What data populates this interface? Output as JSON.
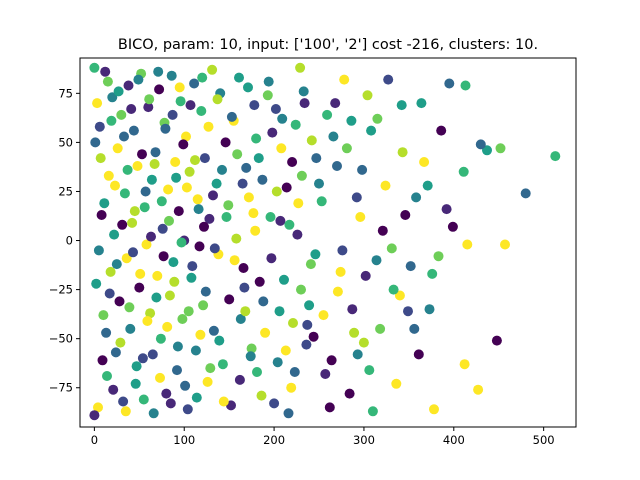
{
  "chart_data": {
    "type": "scatter",
    "title": "BICO, param: 10, input: ['100', '2'] cost -216, clusters: 10.",
    "xlabel": "",
    "ylabel": "",
    "xlim": [
      -16,
      536
    ],
    "ylim": [
      -95,
      93
    ],
    "xticks": [
      0,
      100,
      200,
      300,
      400,
      500
    ],
    "yticks": [
      -75,
      -50,
      -25,
      0,
      25,
      50,
      75
    ],
    "grid": false,
    "legend": "none",
    "cluster_colors": [
      "#440154",
      "#482878",
      "#3e4a89",
      "#31688e",
      "#26828e",
      "#1f9e89",
      "#35b779",
      "#6ece58",
      "#b5de2b",
      "#fde725"
    ],
    "points": [
      [
        480,
        24,
        3
      ],
      [
        513,
        43,
        6
      ],
      [
        457,
        -2,
        9
      ],
      [
        448,
        -51,
        0
      ],
      [
        427,
        -76,
        9
      ],
      [
        437,
        46,
        5
      ],
      [
        413,
        79,
        6
      ],
      [
        395,
        80,
        3
      ],
      [
        411,
        35,
        6
      ],
      [
        399,
        7,
        0
      ],
      [
        376,
        -17,
        6
      ],
      [
        378,
        -86,
        9
      ],
      [
        386,
        56,
        0
      ],
      [
        430,
        49,
        3
      ],
      [
        452,
        47,
        7
      ],
      [
        415,
        -2,
        9
      ],
      [
        412,
        -63,
        9
      ],
      [
        373,
        -35,
        4
      ],
      [
        364,
        70,
        5
      ],
      [
        352,
        -13,
        3
      ],
      [
        343,
        45,
        8
      ],
      [
        336,
        -73,
        9
      ],
      [
        315,
        62,
        7
      ],
      [
        306,
        -66,
        6
      ],
      [
        298,
        36,
        3
      ],
      [
        284,
        -78,
        0
      ],
      [
        296,
        12,
        9
      ],
      [
        327,
        82,
        2
      ],
      [
        342,
        69,
        5
      ],
      [
        358,
        22,
        4
      ],
      [
        371,
        28,
        5
      ],
      [
        340,
        -28,
        9
      ],
      [
        361,
        -58,
        0
      ],
      [
        318,
        -45,
        7
      ],
      [
        302,
        -18,
        1
      ],
      [
        289,
        -47,
        8
      ],
      [
        278,
        82,
        9
      ],
      [
        266,
        53,
        4
      ],
      [
        276,
        -5,
        2
      ],
      [
        257,
        -68,
        1
      ],
      [
        253,
        20,
        6
      ],
      [
        268,
        70,
        1
      ],
      [
        321,
        5,
        0
      ],
      [
        331,
        -4,
        7
      ],
      [
        310,
        -87,
        6
      ],
      [
        349,
        -36,
        2
      ],
      [
        286,
        61,
        5
      ],
      [
        271,
        -26,
        9
      ],
      [
        262,
        -85,
        0
      ],
      [
        247,
        42,
        3
      ],
      [
        293,
        -58,
        4
      ],
      [
        304,
        74,
        8
      ],
      [
        226,
        3,
        1
      ],
      [
        239,
        -33,
        5
      ],
      [
        233,
        76,
        4
      ],
      [
        219,
        -75,
        9
      ],
      [
        241,
        -12,
        7
      ],
      [
        224,
        59,
        6
      ],
      [
        236,
        -53,
        2
      ],
      [
        214,
        27,
        0
      ],
      [
        229,
        88,
        8
      ],
      [
        216,
        -88,
        3
      ],
      [
        208,
        47,
        9
      ],
      [
        211,
        -20,
        5
      ],
      [
        207,
        10,
        1
      ],
      [
        221,
        -42,
        8
      ],
      [
        202,
        67,
        2
      ],
      [
        204,
        -62,
        4
      ],
      [
        231,
        33,
        7
      ],
      [
        244,
        -49,
        0
      ],
      [
        196,
        12,
        6
      ],
      [
        188,
        -31,
        3
      ],
      [
        194,
        81,
        4
      ],
      [
        183,
        42,
        5
      ],
      [
        186,
        -79,
        8
      ],
      [
        179,
        5,
        9
      ],
      [
        198,
        55,
        1
      ],
      [
        175,
        -55,
        7
      ],
      [
        172,
        22,
        9
      ],
      [
        178,
        69,
        2
      ],
      [
        166,
        -14,
        0
      ],
      [
        181,
        -67,
        6
      ],
      [
        169,
        37,
        3
      ],
      [
        161,
        83,
        5
      ],
      [
        163,
        -40,
        4
      ],
      [
        158,
        1,
        8
      ],
      [
        155,
        61,
        9
      ],
      [
        152,
        -84,
        1
      ],
      [
        167,
        -24,
        2
      ],
      [
        149,
        18,
        7
      ],
      [
        146,
        50,
        0
      ],
      [
        143,
        -63,
        6
      ],
      [
        140,
        75,
        4
      ],
      [
        138,
        -7,
        9
      ],
      [
        136,
        29,
        5
      ],
      [
        133,
        -46,
        3
      ],
      [
        131,
        87,
        8
      ],
      [
        128,
        11,
        1
      ],
      [
        126,
        -72,
        9
      ],
      [
        123,
        42,
        2
      ],
      [
        121,
        -33,
        7
      ],
      [
        119,
        66,
        6
      ],
      [
        117,
        -3,
        0
      ],
      [
        115,
        21,
        9
      ],
      [
        113,
        -56,
        4
      ],
      [
        111,
        80,
        3
      ],
      [
        108,
        -19,
        5
      ],
      [
        106,
        35,
        8
      ],
      [
        104,
        -86,
        2
      ],
      [
        102,
        53,
        9
      ],
      [
        100,
        0,
        1
      ],
      [
        98,
        -40,
        7
      ],
      [
        96,
        71,
        6
      ],
      [
        94,
        15,
        0
      ],
      [
        92,
        -66,
        3
      ],
      [
        90,
        40,
        9
      ],
      [
        88,
        -11,
        5
      ],
      [
        86,
        84,
        4
      ],
      [
        84,
        -28,
        8
      ],
      [
        82,
        26,
        9
      ],
      [
        80,
        -78,
        1
      ],
      [
        78,
        60,
        7
      ],
      [
        76,
        6,
        2
      ],
      [
        74,
        -50,
        6
      ],
      [
        72,
        77,
        0
      ],
      [
        70,
        -18,
        9
      ],
      [
        68,
        45,
        3
      ],
      [
        66,
        -88,
        4
      ],
      [
        64,
        31,
        5
      ],
      [
        62,
        -37,
        8
      ],
      [
        60,
        68,
        1
      ],
      [
        58,
        -2,
        9
      ],
      [
        56,
        17,
        6
      ],
      [
        54,
        -60,
        2
      ],
      [
        52,
        85,
        7
      ],
      [
        50,
        -24,
        0
      ],
      [
        48,
        38,
        9
      ],
      [
        46,
        -73,
        5
      ],
      [
        44,
        56,
        3
      ],
      [
        42,
        9,
        8
      ],
      [
        40,
        -45,
        4
      ],
      [
        38,
        79,
        1
      ],
      [
        36,
        -9,
        9
      ],
      [
        34,
        24,
        6
      ],
      [
        32,
        -82,
        2
      ],
      [
        30,
        64,
        7
      ],
      [
        28,
        -31,
        0
      ],
      [
        26,
        47,
        9
      ],
      [
        24,
        -57,
        3
      ],
      [
        22,
        3,
        5
      ],
      [
        20,
        73,
        4
      ],
      [
        18,
        -16,
        8
      ],
      [
        16,
        33,
        9
      ],
      [
        14,
        -69,
        6
      ],
      [
        12,
        86,
        1
      ],
      [
        10,
        -38,
        7
      ],
      [
        8,
        13,
        0
      ],
      [
        6,
        58,
        2
      ],
      [
        4,
        -85,
        9
      ],
      [
        2,
        -22,
        5
      ],
      [
        1,
        50,
        3
      ],
      [
        0,
        88,
        6
      ],
      [
        0,
        -89,
        1
      ],
      [
        3,
        70,
        9
      ],
      [
        5,
        -5,
        4
      ],
      [
        7,
        42,
        8
      ],
      [
        9,
        -61,
        0
      ],
      [
        11,
        19,
        5
      ],
      [
        13,
        -47,
        3
      ],
      [
        15,
        81,
        7
      ],
      [
        17,
        -27,
        2
      ],
      [
        19,
        61,
        6
      ],
      [
        21,
        -76,
        1
      ],
      [
        23,
        28,
        9
      ],
      [
        25,
        -12,
        4
      ],
      [
        27,
        76,
        5
      ],
      [
        29,
        -52,
        8
      ],
      [
        31,
        8,
        0
      ],
      [
        33,
        53,
        3
      ],
      [
        35,
        -87,
        9
      ],
      [
        37,
        36,
        6
      ],
      [
        39,
        -34,
        7
      ],
      [
        41,
        67,
        1
      ],
      [
        43,
        -6,
        2
      ],
      [
        45,
        15,
        8
      ],
      [
        47,
        -64,
        5
      ],
      [
        49,
        82,
        4
      ],
      [
        51,
        -17,
        9
      ],
      [
        53,
        44,
        0
      ],
      [
        55,
        -81,
        6
      ],
      [
        57,
        25,
        3
      ],
      [
        59,
        -41,
        9
      ],
      [
        61,
        72,
        7
      ],
      [
        63,
        2,
        1
      ],
      [
        65,
        -58,
        2
      ],
      [
        67,
        39,
        8
      ],
      [
        69,
        -29,
        5
      ],
      [
        71,
        86,
        4
      ],
      [
        73,
        -70,
        9
      ],
      [
        75,
        20,
        6
      ],
      [
        77,
        -8,
        0
      ],
      [
        79,
        57,
        3
      ],
      [
        81,
        -44,
        9
      ],
      [
        83,
        10,
        7
      ],
      [
        85,
        -83,
        1
      ],
      [
        87,
        64,
        2
      ],
      [
        89,
        -21,
        8
      ],
      [
        91,
        32,
        5
      ],
      [
        93,
        -54,
        4
      ],
      [
        95,
        78,
        9
      ],
      [
        97,
        -1,
        6
      ],
      [
        99,
        49,
        0
      ],
      [
        101,
        -74,
        3
      ],
      [
        103,
        27,
        9
      ],
      [
        105,
        -36,
        7
      ],
      [
        107,
        69,
        1
      ],
      [
        109,
        -13,
        2
      ],
      [
        112,
        41,
        8
      ],
      [
        114,
        -80,
        5
      ],
      [
        116,
        16,
        4
      ],
      [
        118,
        -48,
        9
      ],
      [
        120,
        83,
        6
      ],
      [
        122,
        7,
        0
      ],
      [
        124,
        -26,
        3
      ],
      [
        127,
        58,
        9
      ],
      [
        129,
        -65,
        7
      ],
      [
        132,
        23,
        1
      ],
      [
        134,
        -4,
        2
      ],
      [
        137,
        72,
        8
      ],
      [
        139,
        -51,
        5
      ],
      [
        142,
        36,
        4
      ],
      [
        144,
        -82,
        9
      ],
      [
        147,
        12,
        6
      ],
      [
        150,
        -30,
        0
      ],
      [
        153,
        63,
        3
      ],
      [
        156,
        -10,
        9
      ],
      [
        159,
        44,
        7
      ],
      [
        162,
        -71,
        1
      ],
      [
        165,
        29,
        2
      ],
      [
        168,
        -36,
        8
      ],
      [
        171,
        78,
        5
      ],
      [
        174,
        -59,
        4
      ],
      [
        177,
        14,
        9
      ],
      [
        180,
        52,
        6
      ],
      [
        184,
        -21,
        0
      ],
      [
        187,
        31,
        3
      ],
      [
        190,
        -47,
        9
      ],
      [
        193,
        74,
        7
      ],
      [
        197,
        -9,
        1
      ],
      [
        200,
        -83,
        2
      ],
      [
        203,
        25,
        8
      ],
      [
        206,
        -36,
        5
      ],
      [
        209,
        62,
        4
      ],
      [
        213,
        -56,
        9
      ],
      [
        217,
        8,
        6
      ],
      [
        220,
        40,
        0
      ],
      [
        223,
        -67,
        3
      ],
      [
        227,
        19,
        9
      ],
      [
        230,
        -25,
        7
      ],
      [
        234,
        70,
        1
      ],
      [
        237,
        -43,
        2
      ],
      [
        242,
        51,
        8
      ],
      [
        246,
        -7,
        5
      ],
      [
        250,
        29,
        4
      ],
      [
        255,
        -38,
        9
      ],
      [
        259,
        64,
        6
      ],
      [
        264,
        -61,
        0
      ],
      [
        270,
        38,
        3
      ],
      [
        274,
        -16,
        9
      ],
      [
        281,
        47,
        7
      ],
      [
        287,
        -35,
        1
      ],
      [
        292,
        22,
        2
      ],
      [
        300,
        -52,
        8
      ],
      [
        308,
        56,
        5
      ],
      [
        314,
        -10,
        4
      ],
      [
        324,
        28,
        9
      ],
      [
        333,
        -25,
        6
      ],
      [
        346,
        13,
        0
      ],
      [
        356,
        -45,
        3
      ],
      [
        367,
        40,
        9
      ],
      [
        383,
        -8,
        7
      ],
      [
        392,
        16,
        1
      ]
    ]
  }
}
